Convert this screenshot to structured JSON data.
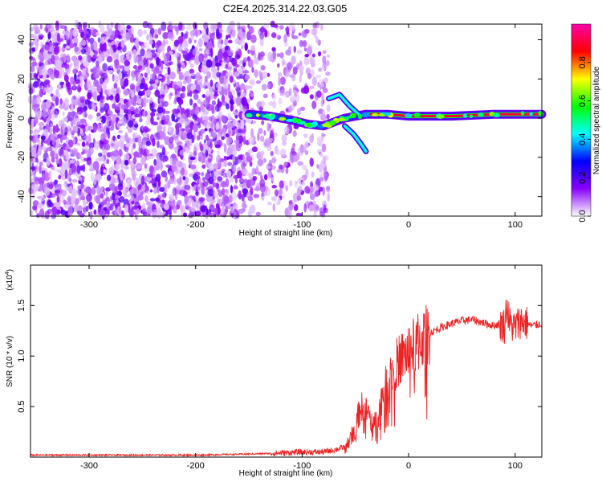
{
  "title": "C2E4.2025.314.22.03.G05",
  "chart_data": [
    {
      "type": "heatmap",
      "xlabel": "Height of straight line (km)",
      "ylabel": "Frequency (Hz)",
      "xlim": [
        -355,
        125
      ],
      "ylim": [
        -50,
        48
      ],
      "xticks": [
        -300,
        -200,
        -100,
        0,
        100
      ],
      "yticks": [
        -40,
        -20,
        0,
        20,
        40
      ],
      "colorbar": {
        "label": "Normalized spectral amplitude",
        "range": [
          0.0,
          1.0
        ],
        "ticks": [
          0.0,
          0.2,
          0.4,
          0.6,
          0.8
        ],
        "tick_labels": [
          "0.0",
          "0.2",
          "0.4",
          "0.6",
          "0.8"
        ],
        "colormap": [
          "#ffffff",
          "#8800ff",
          "#0000ff",
          "#00ffff",
          "#00ff00",
          "#ffff00",
          "#ff0000",
          "#ff00aa"
        ]
      },
      "features": [
        {
          "description": "noise region",
          "x_range": [
            -355,
            -150
          ],
          "y_range": [
            -50,
            48
          ]
        },
        {
          "description": "sparse noise",
          "x_range": [
            -150,
            -75
          ],
          "y_range": [
            -50,
            48
          ]
        },
        {
          "description": "signal track",
          "points": [
            [
              -150,
              2
            ],
            [
              -130,
              1
            ],
            [
              -110,
              -1
            ],
            [
              -95,
              -3
            ],
            [
              -80,
              -4
            ],
            [
              -70,
              -2
            ],
            [
              -60,
              0
            ],
            [
              -40,
              2
            ],
            [
              -20,
              2
            ],
            [
              0,
              1
            ],
            [
              40,
              1
            ],
            [
              80,
              2
            ],
            [
              125,
              2
            ]
          ]
        },
        {
          "description": "diverging branch up",
          "points": [
            [
              -75,
              10
            ],
            [
              -65,
              12
            ],
            [
              -55,
              6
            ],
            [
              -45,
              1
            ]
          ]
        },
        {
          "description": "diverging branch down",
          "points": [
            [
              -60,
              -4
            ],
            [
              -52,
              -8
            ],
            [
              -45,
              -13
            ],
            [
              -40,
              -17
            ]
          ]
        }
      ]
    },
    {
      "type": "line",
      "xlabel": "Height of straight line (km)",
      "ylabel": "SNR (10 * v/v)",
      "y_multiplier": "(x10",
      "y_multiplier_exp": "4",
      "y_multiplier_close": ")",
      "xlim": [
        -355,
        125
      ],
      "ylim": [
        0,
        1.9
      ],
      "xticks": [
        -300,
        -200,
        -100,
        0,
        100
      ],
      "yticks": [
        0.5,
        1.0,
        1.5
      ],
      "ytick_labels": [
        "0.5",
        "1.0",
        "1.5"
      ],
      "series": [
        {
          "color": "#ee2222",
          "x": [
            -355,
            -300,
            -250,
            -200,
            -150,
            -120,
            -100,
            -80,
            -70,
            -60,
            -55,
            -50,
            -45,
            -40,
            -35,
            -30,
            -25,
            -20,
            -15,
            -10,
            -5,
            0,
            10,
            20,
            30,
            40,
            50,
            60,
            70,
            80,
            85,
            90,
            92,
            95,
            100,
            105,
            110,
            115,
            120,
            125
          ],
          "y": [
            0.02,
            0.02,
            0.02,
            0.02,
            0.03,
            0.04,
            0.05,
            0.05,
            0.07,
            0.1,
            0.16,
            0.3,
            0.5,
            0.45,
            0.4,
            0.35,
            0.6,
            0.75,
            0.85,
            0.95,
            1.0,
            1.05,
            1.15,
            1.23,
            1.28,
            1.32,
            1.35,
            1.36,
            1.33,
            1.3,
            1.32,
            1.3,
            1.5,
            1.32,
            1.28,
            1.35,
            1.33,
            1.3,
            1.31,
            1.32
          ]
        }
      ]
    }
  ]
}
